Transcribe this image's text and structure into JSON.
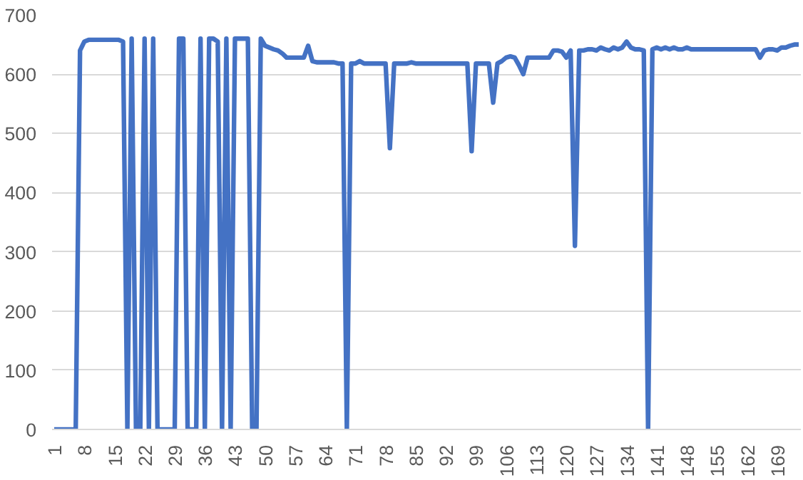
{
  "chart_data": {
    "type": "line",
    "categories": [
      "1",
      null,
      null,
      null,
      null,
      null,
      null,
      "8",
      null,
      null,
      null,
      null,
      null,
      null,
      "15",
      null,
      null,
      null,
      null,
      null,
      null,
      "22",
      null,
      null,
      null,
      null,
      null,
      null,
      "29",
      null,
      null,
      null,
      null,
      null,
      null,
      "36",
      null,
      null,
      null,
      null,
      null,
      null,
      "43",
      null,
      null,
      null,
      null,
      null,
      null,
      "50",
      null,
      null,
      null,
      null,
      null,
      null,
      "57",
      null,
      null,
      null,
      null,
      null,
      null,
      "64",
      null,
      null,
      null,
      null,
      null,
      null,
      "71",
      null,
      null,
      null,
      null,
      null,
      null,
      "78",
      null,
      null,
      null,
      null,
      null,
      null,
      "85",
      null,
      null,
      null,
      null,
      null,
      null,
      "92",
      null,
      null,
      null,
      null,
      null,
      null,
      "99",
      null,
      null,
      null,
      null,
      null,
      null,
      "106",
      null,
      null,
      null,
      null,
      null,
      null,
      "113",
      null,
      null,
      null,
      null,
      null,
      null,
      "120",
      null,
      null,
      null,
      null,
      null,
      null,
      "127",
      null,
      null,
      null,
      null,
      null,
      null,
      "134",
      null,
      null,
      null,
      null,
      null,
      null,
      "141",
      null,
      null,
      null,
      null,
      null,
      null,
      "148",
      null,
      null,
      null,
      null,
      null,
      null,
      "155",
      null,
      null,
      null,
      null,
      null,
      null,
      "162",
      null,
      null,
      null,
      null,
      null,
      null,
      "169",
      null,
      null,
      null,
      null,
      null
    ],
    "series": [
      {
        "color": "#4472c4",
        "values": [
          0,
          0,
          0,
          0,
          0,
          0,
          640,
          655,
          658,
          658,
          658,
          658,
          658,
          658,
          658,
          658,
          655,
          0,
          660,
          0,
          0,
          660,
          0,
          660,
          0,
          0,
          0,
          0,
          0,
          660,
          660,
          0,
          0,
          0,
          660,
          0,
          660,
          660,
          655,
          0,
          660,
          0,
          660,
          660,
          660,
          660,
          0,
          0,
          660,
          648,
          645,
          642,
          640,
          635,
          628,
          628,
          628,
          628,
          628,
          648,
          622,
          620,
          620,
          620,
          620,
          620,
          618,
          618,
          0,
          618,
          618,
          622,
          618,
          618,
          618,
          618,
          618,
          618,
          475,
          618,
          618,
          618,
          618,
          620,
          618,
          618,
          618,
          618,
          618,
          618,
          618,
          618,
          618,
          618,
          618,
          618,
          618,
          470,
          618,
          618,
          618,
          618,
          552,
          618,
          622,
          628,
          630,
          628,
          615,
          600,
          628,
          628,
          628,
          628,
          628,
          628,
          640,
          640,
          638,
          628,
          640,
          310,
          640,
          640,
          642,
          642,
          640,
          645,
          642,
          640,
          645,
          642,
          645,
          655,
          645,
          642,
          642,
          640,
          0,
          642,
          645,
          642,
          645,
          642,
          645,
          642,
          642,
          645,
          642,
          642,
          642,
          642,
          642,
          642,
          642,
          642,
          642,
          642,
          642,
          642,
          642,
          642,
          642,
          642,
          628,
          640,
          642,
          642,
          640,
          645,
          645,
          648,
          650,
          650
        ]
      }
    ],
    "ylim": [
      0,
      700
    ],
    "yticks": [
      0,
      100,
      200,
      300,
      400,
      500,
      600,
      700
    ],
    "grid": "y",
    "line_style": "solid",
    "marker": "none"
  }
}
